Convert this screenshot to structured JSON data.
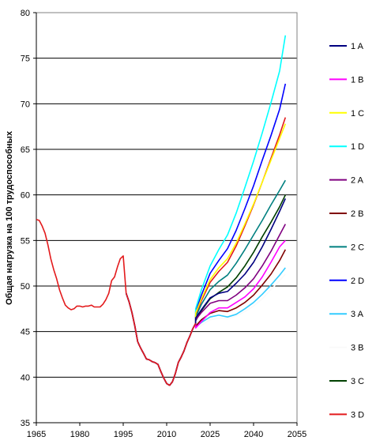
{
  "chart_data": {
    "type": "line",
    "title": "",
    "xlabel": "",
    "ylabel": "Общая нагрузка на 100 трудоспособных",
    "xlim": [
      1965,
      2055
    ],
    "ylim": [
      35,
      80
    ],
    "grid": "horizontal",
    "legend_position": "right",
    "x_ticks": [
      "1965",
      "1980",
      "1995",
      "2010",
      "2025",
      "2040",
      "2055"
    ],
    "y_ticks": [
      "35",
      "40",
      "45",
      "50",
      "55",
      "60",
      "65",
      "70",
      "75",
      "80"
    ],
    "history": {
      "color": "#e31a1c",
      "points": [
        [
          1965,
          57.3
        ],
        [
          1966,
          57.2
        ],
        [
          1967,
          56.6
        ],
        [
          1968,
          55.8
        ],
        [
          1969,
          54.5
        ],
        [
          1970,
          53.0
        ],
        [
          1971,
          51.8
        ],
        [
          1972,
          50.8
        ],
        [
          1973,
          49.6
        ],
        [
          1974,
          48.7
        ],
        [
          1975,
          47.9
        ],
        [
          1976,
          47.6
        ],
        [
          1977,
          47.4
        ],
        [
          1978,
          47.5
        ],
        [
          1979,
          47.8
        ],
        [
          1980,
          47.8
        ],
        [
          1981,
          47.7
        ],
        [
          1982,
          47.8
        ],
        [
          1983,
          47.8
        ],
        [
          1984,
          47.9
        ],
        [
          1985,
          47.7
        ],
        [
          1986,
          47.7
        ],
        [
          1987,
          47.7
        ],
        [
          1988,
          48.0
        ],
        [
          1989,
          48.5
        ],
        [
          1990,
          49.2
        ],
        [
          1991,
          50.6
        ],
        [
          1992,
          51.0
        ],
        [
          1993,
          52.1
        ],
        [
          1994,
          53.0
        ],
        [
          1995,
          53.3
        ],
        [
          1996,
          49.2
        ]
      ]
    },
    "base": [
      [
        1996,
        49.2
      ],
      [
        1997,
        48.3
      ],
      [
        1998,
        47.1
      ],
      [
        1999,
        45.6
      ],
      [
        2000,
        43.9
      ],
      [
        2001,
        43.2
      ],
      [
        2002,
        42.6
      ],
      [
        2003,
        42.0
      ],
      [
        2004,
        41.9
      ],
      [
        2005,
        41.7
      ],
      [
        2006,
        41.6
      ],
      [
        2007,
        41.4
      ],
      [
        2008,
        40.6
      ],
      [
        2009,
        39.9
      ],
      [
        2010,
        39.3
      ],
      [
        2011,
        39.1
      ],
      [
        2012,
        39.5
      ],
      [
        2013,
        40.4
      ],
      [
        2014,
        41.6
      ],
      [
        2015,
        42.2
      ],
      [
        2016,
        42.9
      ],
      [
        2017,
        43.8
      ],
      [
        2018,
        44.5
      ],
      [
        2019,
        45.3
      ],
      [
        2020,
        45.9
      ]
    ],
    "series": [
      {
        "name": "1 A",
        "color": "#000080",
        "values": [
          [
            2020,
            46.5
          ],
          [
            2022,
            47.4
          ],
          [
            2025,
            48.7
          ],
          [
            2028,
            49.2
          ],
          [
            2031,
            49.4
          ],
          [
            2034,
            50.3
          ],
          [
            2037,
            51.3
          ],
          [
            2040,
            52.6
          ],
          [
            2043,
            54.3
          ],
          [
            2046,
            56.2
          ],
          [
            2049,
            58.2
          ],
          [
            2051,
            59.6
          ]
        ]
      },
      {
        "name": "1 B",
        "color": "#ff00ff",
        "values": [
          [
            2020,
            45.4
          ],
          [
            2022,
            46.1
          ],
          [
            2025,
            47.1
          ],
          [
            2028,
            47.6
          ],
          [
            2031,
            47.6
          ],
          [
            2034,
            48.2
          ],
          [
            2037,
            48.8
          ],
          [
            2040,
            49.7
          ],
          [
            2043,
            51.0
          ],
          [
            2046,
            52.6
          ],
          [
            2049,
            54.3
          ],
          [
            2051,
            55.0
          ]
        ]
      },
      {
        "name": "1 C",
        "color": "#ffff00",
        "values": [
          [
            2020,
            47.0
          ],
          [
            2022,
            48.6
          ],
          [
            2025,
            50.7
          ],
          [
            2028,
            52.0
          ],
          [
            2031,
            53.0
          ],
          [
            2034,
            54.7
          ],
          [
            2037,
            56.8
          ],
          [
            2040,
            59.0
          ],
          [
            2043,
            61.4
          ],
          [
            2046,
            63.8
          ],
          [
            2049,
            66.2
          ],
          [
            2051,
            67.8
          ]
        ]
      },
      {
        "name": "1 D",
        "color": "#00ffff",
        "values": [
          [
            2020,
            47.5
          ],
          [
            2022,
            49.6
          ],
          [
            2025,
            52.2
          ],
          [
            2028,
            54.0
          ],
          [
            2031,
            55.6
          ],
          [
            2034,
            58.0
          ],
          [
            2037,
            60.8
          ],
          [
            2040,
            63.7
          ],
          [
            2043,
            66.8
          ],
          [
            2046,
            70.1
          ],
          [
            2049,
            73.6
          ],
          [
            2051,
            77.5
          ]
        ]
      },
      {
        "name": "2 A",
        "color": "#800080",
        "values": [
          [
            2020,
            46.3
          ],
          [
            2022,
            47.1
          ],
          [
            2025,
            48.1
          ],
          [
            2028,
            48.4
          ],
          [
            2031,
            48.4
          ],
          [
            2034,
            49.0
          ],
          [
            2037,
            49.8
          ],
          [
            2040,
            50.8
          ],
          [
            2043,
            52.2
          ],
          [
            2046,
            53.8
          ],
          [
            2049,
            55.6
          ],
          [
            2051,
            56.8
          ]
        ]
      },
      {
        "name": "2 B",
        "color": "#800000",
        "values": [
          [
            2020,
            45.6
          ],
          [
            2022,
            46.3
          ],
          [
            2025,
            47.0
          ],
          [
            2028,
            47.3
          ],
          [
            2031,
            47.2
          ],
          [
            2034,
            47.6
          ],
          [
            2037,
            48.2
          ],
          [
            2040,
            49.0
          ],
          [
            2043,
            50.1
          ],
          [
            2046,
            51.3
          ],
          [
            2049,
            52.8
          ],
          [
            2051,
            54.0
          ]
        ]
      },
      {
        "name": "2 C",
        "color": "#008080",
        "values": [
          [
            2020,
            46.6
          ],
          [
            2022,
            48.0
          ],
          [
            2025,
            49.6
          ],
          [
            2028,
            50.5
          ],
          [
            2031,
            51.2
          ],
          [
            2034,
            52.5
          ],
          [
            2037,
            54.0
          ],
          [
            2040,
            55.6
          ],
          [
            2043,
            57.2
          ],
          [
            2046,
            58.9
          ],
          [
            2049,
            60.5
          ],
          [
            2051,
            61.6
          ]
        ]
      },
      {
        "name": "2 D",
        "color": "#0000ff",
        "values": [
          [
            2020,
            47.2
          ],
          [
            2022,
            49.0
          ],
          [
            2025,
            51.4
          ],
          [
            2028,
            52.8
          ],
          [
            2031,
            54.1
          ],
          [
            2034,
            56.1
          ],
          [
            2037,
            58.5
          ],
          [
            2040,
            61.0
          ],
          [
            2043,
            63.8
          ],
          [
            2046,
            66.5
          ],
          [
            2049,
            69.4
          ],
          [
            2051,
            72.2
          ]
        ]
      },
      {
        "name": "3 A",
        "color": "#33ccff",
        "values": [
          [
            2020,
            45.5
          ],
          [
            2022,
            46.0
          ],
          [
            2025,
            46.6
          ],
          [
            2028,
            46.8
          ],
          [
            2031,
            46.6
          ],
          [
            2034,
            46.9
          ],
          [
            2037,
            47.5
          ],
          [
            2040,
            48.2
          ],
          [
            2043,
            49.1
          ],
          [
            2046,
            50.1
          ],
          [
            2049,
            51.2
          ],
          [
            2051,
            52.0
          ]
        ]
      },
      {
        "name": "3 B",
        "color": "#fafafa",
        "values": [
          [
            2020,
            45.2
          ],
          [
            2022,
            45.7
          ],
          [
            2025,
            46.3
          ],
          [
            2028,
            46.5
          ],
          [
            2031,
            46.4
          ],
          [
            2034,
            46.7
          ],
          [
            2037,
            47.2
          ],
          [
            2040,
            47.8
          ],
          [
            2043,
            48.6
          ],
          [
            2046,
            49.6
          ],
          [
            2049,
            50.6
          ],
          [
            2051,
            51.3
          ]
        ]
      },
      {
        "name": "3 C",
        "color": "#004000",
        "values": [
          [
            2020,
            46.2
          ],
          [
            2022,
            47.3
          ],
          [
            2025,
            48.6
          ],
          [
            2028,
            49.3
          ],
          [
            2031,
            49.9
          ],
          [
            2034,
            50.9
          ],
          [
            2037,
            52.2
          ],
          [
            2040,
            53.7
          ],
          [
            2043,
            55.4
          ],
          [
            2046,
            57.0
          ],
          [
            2049,
            58.7
          ],
          [
            2051,
            60.0
          ]
        ]
      },
      {
        "name": "3 D",
        "color": "#e31a1c",
        "values": [
          [
            2020,
            46.8
          ],
          [
            2022,
            48.4
          ],
          [
            2025,
            50.4
          ],
          [
            2028,
            51.6
          ],
          [
            2031,
            52.6
          ],
          [
            2034,
            54.4
          ],
          [
            2037,
            56.6
          ],
          [
            2040,
            58.9
          ],
          [
            2043,
            61.4
          ],
          [
            2046,
            64.0
          ],
          [
            2049,
            66.6
          ],
          [
            2051,
            68.5
          ]
        ]
      }
    ]
  }
}
